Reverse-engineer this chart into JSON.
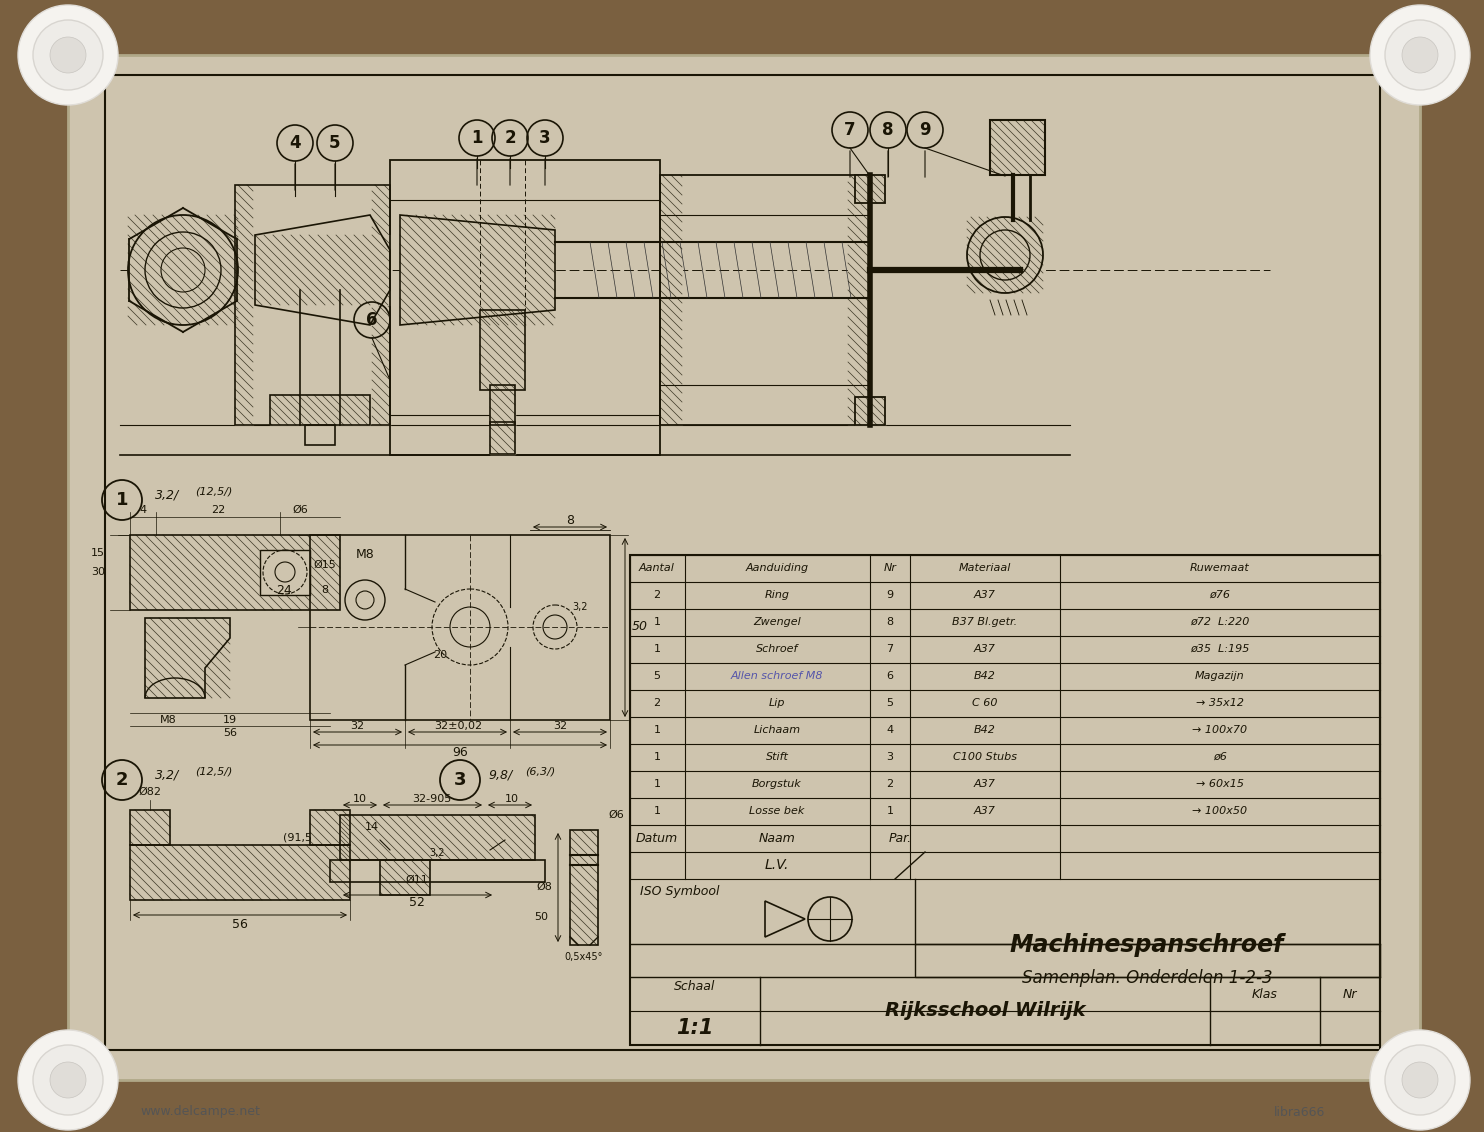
{
  "bg_outer": "#7a6040",
  "bg_paper": "#cec4ae",
  "line_color": "#1a1505",
  "title": "Machinespanschroef",
  "subtitle": "Samenplan. Onderdelen 1-2-3",
  "school": "Rijksschool Wilrijk",
  "schaal_label": "Schaal",
  "schaal_value": "1:1",
  "klas_label": "Klas",
  "nr_label": "Nr",
  "iso_label": "ISO Symbool",
  "datum_label": "Datum",
  "naam_label": "Naam",
  "par_label": "Par.",
  "lv_label": "L.V.",
  "table_headers": [
    "Aantal",
    "Aanduiding",
    "Nr",
    "Materiaal",
    "Ruwemaat"
  ],
  "table_rows": [
    [
      "2",
      "Ring",
      "9",
      "A37",
      "ø76"
    ],
    [
      "1",
      "Zwengel",
      "8",
      "B37 Bl.getr.",
      "ø72  L:220"
    ],
    [
      "1",
      "Schroef",
      "7",
      "A37",
      "ø35  L:195"
    ],
    [
      "5",
      "Allen schroef M8",
      "6",
      "B42",
      "Magazijn"
    ],
    [
      "2",
      "Lip",
      "5",
      "C 60",
      "→ 35x12"
    ],
    [
      "1",
      "Lichaam",
      "4",
      "B42",
      "→ 100x70"
    ],
    [
      "1",
      "Stift",
      "3",
      "C100 Stubs",
      "ø6"
    ],
    [
      "1",
      "Borgstuk",
      "2",
      "A37",
      "→ 60x15"
    ],
    [
      "1",
      "Losse bek",
      "1",
      "A37",
      "→ 100x50"
    ]
  ]
}
